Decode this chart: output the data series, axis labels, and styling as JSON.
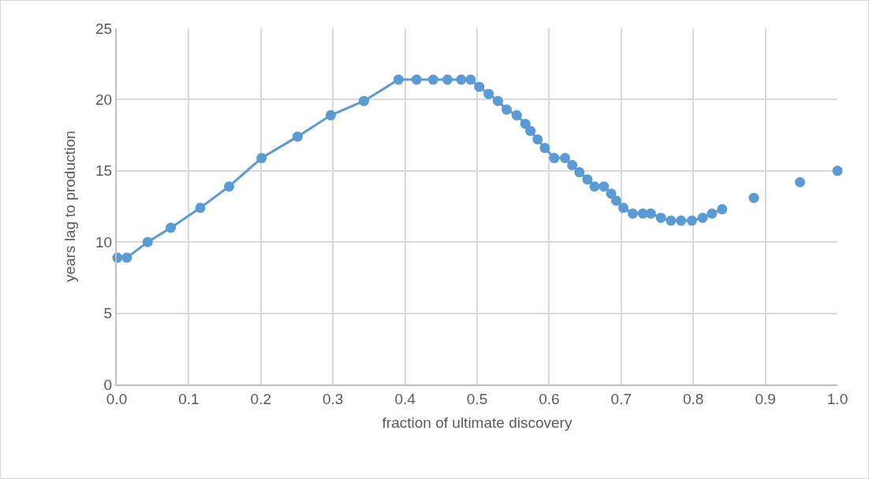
{
  "chart_data": {
    "type": "line",
    "xlabel": "fraction of ultimate discovery",
    "ylabel": "years lag to production",
    "xlim": [
      0,
      1
    ],
    "xticks": [
      {
        "value": 0,
        "label": "0.0"
      },
      {
        "value": 0.1,
        "label": "0.1"
      },
      {
        "value": 0.2,
        "label": "0.2"
      },
      {
        "value": 0.3,
        "label": "0.3"
      },
      {
        "value": 0.4,
        "label": "0.4"
      },
      {
        "value": 0.5,
        "label": "0.5"
      },
      {
        "value": 0.6,
        "label": "0.6"
      },
      {
        "value": 0.7,
        "label": "0.7"
      },
      {
        "value": 0.8,
        "label": "0.8"
      },
      {
        "value": 0.9,
        "label": "0.9"
      },
      {
        "value": 1,
        "label": "1.0"
      }
    ],
    "ylim": [
      0,
      25
    ],
    "yticks": [
      0,
      5,
      10,
      15,
      20,
      25
    ],
    "grid": true,
    "marker": "circle",
    "line_style": "solid",
    "series": [
      {
        "color": "#5b9bd5",
        "x": [
          0.001,
          0.014,
          0.043,
          0.075,
          0.116,
          0.156,
          0.201,
          0.251,
          0.297,
          0.343,
          0.391,
          0.416,
          0.439,
          0.459,
          0.478,
          0.491,
          0.503,
          0.516,
          0.529,
          0.541,
          0.555,
          0.567,
          0.574,
          0.584,
          0.594,
          0.607,
          0.622,
          0.632,
          0.642,
          0.653,
          0.663,
          0.676,
          0.686,
          0.693,
          0.703,
          0.716,
          0.73,
          0.741,
          0.755,
          0.769,
          0.783,
          0.798,
          0.813,
          0.826,
          0.84
        ],
        "values": [
          8.9,
          8.9,
          10.0,
          11.0,
          12.4,
          13.9,
          15.9,
          17.4,
          18.9,
          19.9,
          21.4,
          21.4,
          21.4,
          21.4,
          21.4,
          21.4,
          20.9,
          20.4,
          19.9,
          19.3,
          18.9,
          18.3,
          17.8,
          17.2,
          16.6,
          15.9,
          15.9,
          15.4,
          14.9,
          14.4,
          13.9,
          13.9,
          13.4,
          12.9,
          12.4,
          12.0,
          12.0,
          12.0,
          11.7,
          11.5,
          11.5,
          11.5,
          11.7,
          12.0,
          12.3
        ]
      },
      {
        "type": "scatter",
        "color": "#5b9bd5",
        "x": [
          0.884,
          0.948,
          1.0
        ],
        "values": [
          13.1,
          14.2,
          15.0
        ]
      }
    ]
  }
}
